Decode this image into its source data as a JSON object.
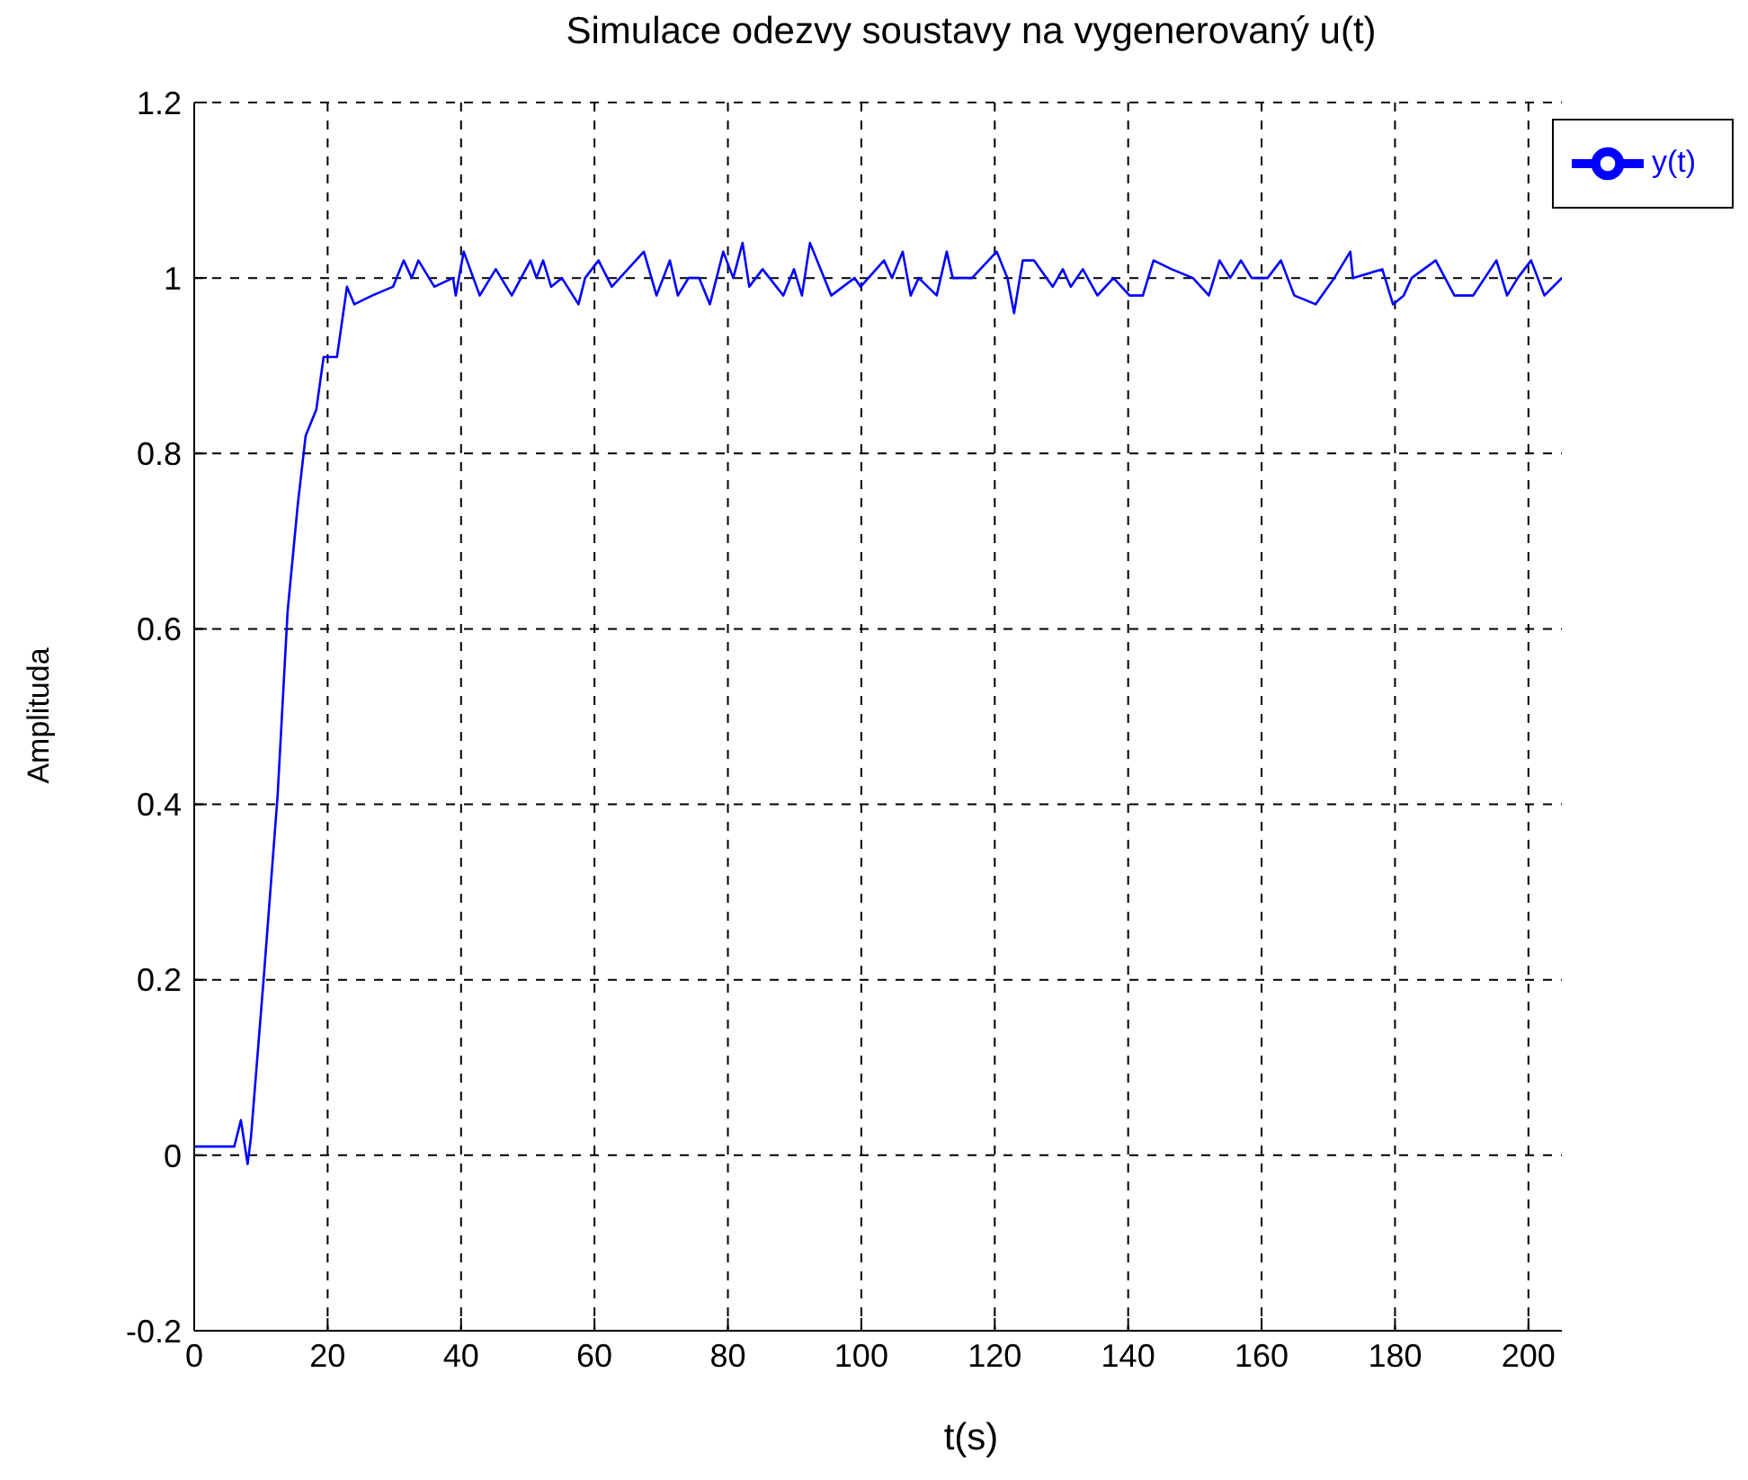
{
  "chart_data": {
    "type": "line",
    "title": "Simulace odezvy soustavy na vygenerovaný u(t)",
    "xlabel": "t(s)",
    "ylabel": "Amplituda",
    "xlim": [
      0,
      205
    ],
    "ylim": [
      -0.2,
      1.2
    ],
    "xticks": [
      0,
      20,
      40,
      60,
      80,
      100,
      120,
      140,
      160,
      180,
      200
    ],
    "yticks": [
      -0.2,
      0,
      0.2,
      0.4,
      0.6,
      0.8,
      1,
      1.2
    ],
    "grid": true,
    "legend": "top right",
    "series": [
      {
        "name": "y(t)",
        "color": "#0000ff",
        "x": [
          0,
          6,
          7,
          8,
          8.5,
          10.5,
          12.5,
          14,
          15.5,
          16.7,
          18.3,
          19.4,
          21.4,
          22.9,
          24,
          26.7,
          29.8,
          31.4,
          32.6,
          33.6,
          36,
          38.8,
          39.2,
          40.4,
          42.8,
          45.2,
          47.6,
          50.4,
          51.3,
          52.3,
          53.5,
          55.1,
          57.6,
          58.6,
          60.6,
          62.6,
          65,
          67.4,
          69.3,
          71.3,
          72.5,
          74.1,
          75.7,
          77.3,
          79.3,
          80.8,
          82.2,
          83.2,
          85.2,
          88.3,
          89.9,
          91.1,
          92.3,
          95.5,
          99,
          99.9,
          103.4,
          104.6,
          106.2,
          107.4,
          108.6,
          111.3,
          112.8,
          113.7,
          116.6,
          120.3,
          121.9,
          122.9,
          124.2,
          125.9,
          128.7,
          130.2,
          131.4,
          133.2,
          135.4,
          137.8,
          140.2,
          142.2,
          143.8,
          146.5,
          149.7,
          152.1,
          153.7,
          155.3,
          156.9,
          158.5,
          160.9,
          162.9,
          164.9,
          168.1,
          170.9,
          173.3,
          173.7,
          178.1,
          179.7,
          181.3,
          182.5,
          186.1,
          188.9,
          191.7,
          195.2,
          196.8,
          198.4,
          200.4,
          202.4,
          205
        ],
        "values": [
          0.01,
          0.01,
          0.04,
          -0.01,
          0.02,
          0.21,
          0.41,
          0.62,
          0.74,
          0.82,
          0.85,
          0.91,
          0.91,
          0.99,
          0.97,
          0.98,
          0.99,
          1.02,
          1.0,
          1.02,
          0.99,
          1.0,
          0.98,
          1.03,
          0.98,
          1.01,
          0.98,
          1.02,
          1.0,
          1.02,
          0.99,
          1.0,
          0.97,
          1.0,
          1.02,
          0.99,
          1.01,
          1.03,
          0.98,
          1.02,
          0.98,
          1.0,
          1.0,
          0.97,
          1.03,
          1.0,
          1.04,
          0.99,
          1.01,
          0.98,
          1.01,
          0.98,
          1.04,
          0.98,
          1.0,
          0.99,
          1.02,
          1.0,
          1.03,
          0.98,
          1.0,
          0.98,
          1.03,
          1.0,
          1.0,
          1.03,
          1.0,
          0.96,
          1.02,
          1.02,
          0.99,
          1.01,
          0.99,
          1.01,
          0.98,
          1.0,
          0.98,
          0.98,
          1.02,
          1.01,
          1.0,
          0.98,
          1.02,
          1.0,
          1.02,
          1.0,
          1.0,
          1.02,
          0.98,
          0.97,
          1.0,
          1.03,
          1.0,
          1.01,
          0.97,
          0.98,
          1.0,
          1.02,
          0.98,
          0.98,
          1.02,
          0.98,
          1.0,
          1.02,
          0.98,
          1.0
        ]
      }
    ]
  }
}
